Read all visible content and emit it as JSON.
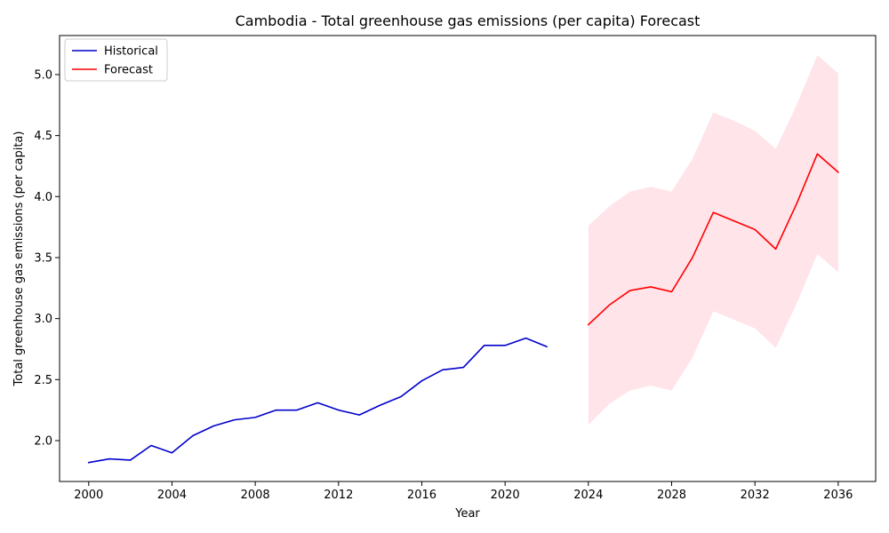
{
  "chart_data": {
    "type": "line",
    "title": "Cambodia - Total greenhouse gas emissions (per capita) Forecast",
    "xlabel": "Year",
    "ylabel": "Total greenhouse gas emissions (per capita)",
    "xlim": [
      1998.6,
      2037.8
    ],
    "ylim": [
      1.665,
      5.32
    ],
    "xticks": [
      2000,
      2004,
      2008,
      2012,
      2016,
      2020,
      2024,
      2028,
      2032,
      2036
    ],
    "yticks": [
      2.0,
      2.5,
      3.0,
      3.5,
      4.0,
      4.5,
      5.0
    ],
    "legend_position": "upper-left",
    "grid": false,
    "series": [
      {
        "name": "Historical",
        "color": "#0000cc",
        "x": [
          2000,
          2001,
          2002,
          2003,
          2004,
          2005,
          2006,
          2007,
          2008,
          2009,
          2010,
          2011,
          2012,
          2013,
          2014,
          2015,
          2016,
          2017,
          2018,
          2019,
          2020,
          2021,
          2022
        ],
        "y": [
          1.82,
          1.85,
          1.84,
          1.96,
          1.9,
          2.04,
          2.12,
          2.17,
          2.19,
          2.25,
          2.25,
          2.31,
          2.25,
          2.21,
          2.29,
          2.36,
          2.49,
          2.58,
          2.6,
          2.78,
          2.78,
          2.84,
          2.77
        ]
      },
      {
        "name": "Forecast",
        "color": "#ff0000",
        "x": [
          2024,
          2025,
          2026,
          2027,
          2028,
          2029,
          2030,
          2031,
          2032,
          2033,
          2034,
          2035,
          2036
        ],
        "y": [
          2.95,
          3.11,
          3.23,
          3.26,
          3.22,
          3.5,
          3.87,
          3.8,
          3.73,
          3.57,
          3.94,
          4.35,
          4.2
        ],
        "lower": [
          2.13,
          2.3,
          2.41,
          2.45,
          2.41,
          2.68,
          3.06,
          2.99,
          2.92,
          2.76,
          3.12,
          3.53,
          3.38
        ],
        "upper": [
          3.76,
          3.92,
          4.04,
          4.08,
          4.04,
          4.31,
          4.69,
          4.62,
          4.54,
          4.39,
          4.75,
          5.16,
          5.01
        ]
      }
    ],
    "band_color": "#ffe4ea"
  }
}
